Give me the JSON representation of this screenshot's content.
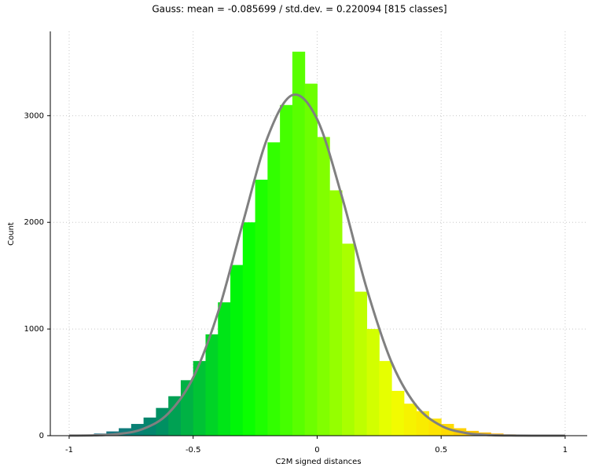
{
  "chart_data": {
    "type": "histogram",
    "title": "Gauss: mean = -0.085699 / std.dev. = 0.220094 [815 classes]",
    "x_label": "C2M signed distances",
    "y_label": "Count",
    "bins": [
      -1.0,
      -0.95,
      -0.9,
      -0.85,
      -0.8,
      -0.75,
      -0.7,
      -0.65,
      -0.6,
      -0.55,
      -0.5,
      -0.45,
      -0.4,
      -0.35,
      -0.3,
      -0.25,
      -0.2,
      -0.15,
      -0.1,
      -0.05,
      0,
      0.05,
      0.1,
      0.15,
      0.2,
      0.25,
      0.3,
      0.35,
      0.4,
      0.45,
      0.5,
      0.55,
      0.6,
      0.65,
      0.7,
      0.75,
      0.8,
      0.85,
      0.9
    ],
    "counts": [
      5,
      10,
      20,
      40,
      70,
      110,
      170,
      260,
      370,
      520,
      700,
      950,
      1250,
      1600,
      2000,
      2400,
      2750,
      3100,
      3600,
      3300,
      2800,
      2300,
      1800,
      1350,
      1000,
      700,
      420,
      300,
      230,
      160,
      110,
      70,
      45,
      30,
      20,
      12,
      8,
      5
    ],
    "colormap": [
      [
        -0.9,
        "#1f6f8b"
      ],
      [
        -0.65,
        "#00876a"
      ],
      [
        -0.3,
        "#00ff00"
      ],
      [
        0.0,
        "#77ff00"
      ],
      [
        0.3,
        "#f0ff00"
      ],
      [
        0.5,
        "#ffe000"
      ],
      [
        0.8,
        "#ffa000"
      ]
    ],
    "curve": {
      "color": "#808080",
      "x": [
        -1.0,
        -0.9,
        -0.8,
        -0.7,
        -0.6,
        -0.5,
        -0.4,
        -0.3,
        -0.2,
        -0.1,
        0,
        0.1,
        0.2,
        0.3,
        0.4,
        0.5,
        0.6,
        0.7,
        0.8,
        0.9,
        1.0
      ],
      "values": [
        0.6,
        3.4,
        16.5,
        65,
        209,
        544,
        1154,
        1992,
        2796,
        3193,
        2966,
        2241,
        1378,
        689,
        280,
        93,
        25,
        5.5,
        1,
        0.1,
        0
      ]
    },
    "xlim": [
      -1.076,
      1.089
    ],
    "ylim": [
      0,
      3790
    ],
    "xticks": [
      -1,
      -0.5,
      0,
      0.5,
      1
    ],
    "yticks": [
      0,
      1000,
      2000,
      3000
    ],
    "grid": true
  }
}
